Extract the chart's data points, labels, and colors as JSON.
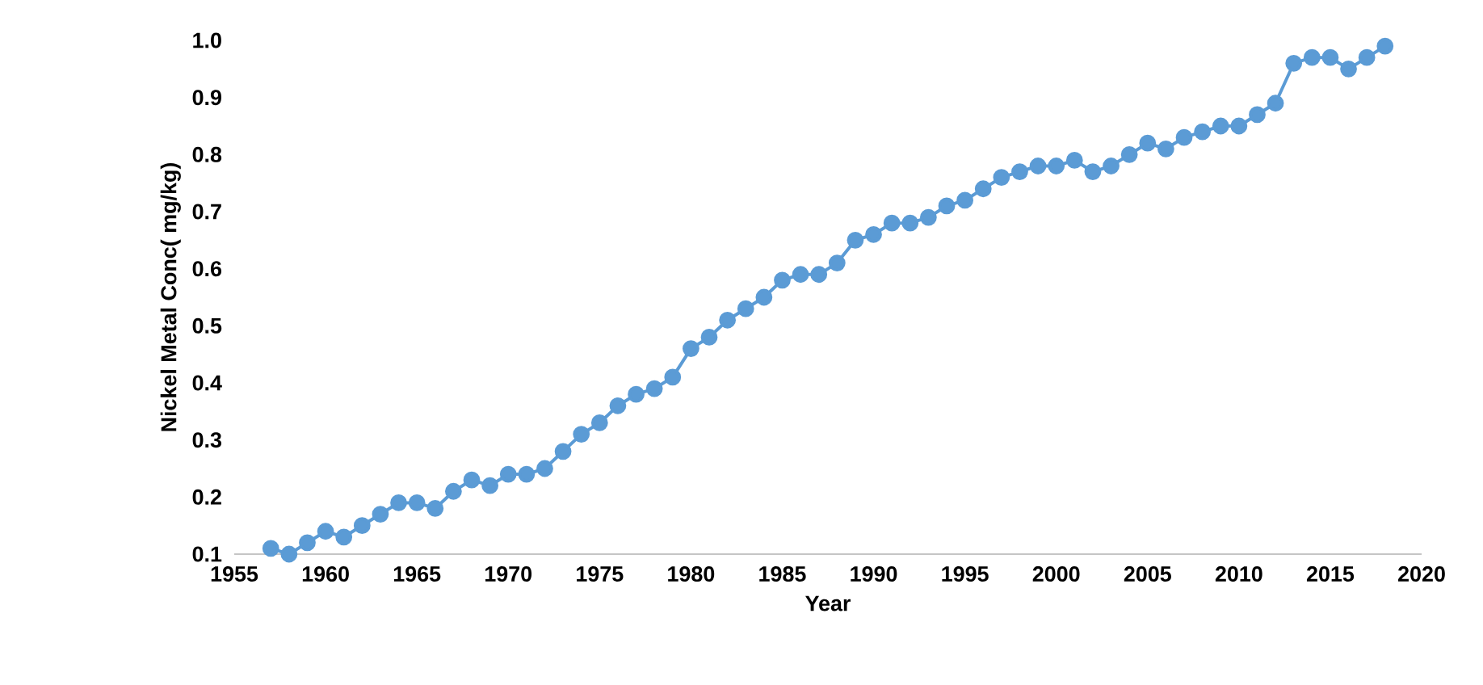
{
  "chart_data": {
    "type": "line",
    "xlabel": "Year",
    "ylabel": "Nickel Metal Conc( mg/kg)",
    "x": [
      1957,
      1958,
      1959,
      1960,
      1961,
      1962,
      1963,
      1964,
      1965,
      1966,
      1967,
      1968,
      1969,
      1970,
      1971,
      1972,
      1973,
      1974,
      1975,
      1976,
      1977,
      1978,
      1979,
      1980,
      1981,
      1982,
      1983,
      1984,
      1985,
      1986,
      1987,
      1988,
      1989,
      1990,
      1991,
      1992,
      1993,
      1994,
      1995,
      1996,
      1997,
      1998,
      1999,
      2000,
      2001,
      2002,
      2003,
      2004,
      2005,
      2006,
      2007,
      2008,
      2009,
      2010,
      2011,
      2012,
      2013,
      2014,
      2015,
      2016,
      2017,
      2018
    ],
    "series": [
      {
        "color": "#5b9bd5",
        "values": [
          0.11,
          0.1,
          0.12,
          0.14,
          0.13,
          0.15,
          0.17,
          0.19,
          0.19,
          0.18,
          0.21,
          0.23,
          0.22,
          0.24,
          0.24,
          0.25,
          0.28,
          0.31,
          0.33,
          0.36,
          0.38,
          0.39,
          0.41,
          0.46,
          0.48,
          0.51,
          0.53,
          0.55,
          0.58,
          0.59,
          0.59,
          0.61,
          0.65,
          0.66,
          0.68,
          0.68,
          0.69,
          0.71,
          0.72,
          0.74,
          0.76,
          0.77,
          0.78,
          0.78,
          0.79,
          0.77,
          0.78,
          0.8,
          0.82,
          0.81,
          0.83,
          0.84,
          0.85,
          0.85,
          0.87,
          0.89,
          0.96,
          0.97,
          0.97,
          0.95,
          0.97,
          0.99
        ]
      }
    ],
    "xlim": [
      1955,
      2020
    ],
    "xticks": [
      1955,
      1960,
      1965,
      1970,
      1975,
      1980,
      1985,
      1990,
      1995,
      2000,
      2005,
      2010,
      2015,
      2020
    ],
    "ylim": [
      0.1,
      1.0
    ],
    "yticks": [
      {
        "value": 0.1,
        "label": "0.1"
      },
      {
        "value": 0.2,
        "label": "0.2"
      },
      {
        "value": 0.3,
        "label": "0.3"
      },
      {
        "value": 0.4,
        "label": "0.4"
      },
      {
        "value": 0.5,
        "label": "0.5"
      },
      {
        "value": 0.6,
        "label": "0.6"
      },
      {
        "value": 0.7,
        "label": "0.7"
      },
      {
        "value": 0.8,
        "label": "0.8"
      },
      {
        "value": 0.9,
        "label": "0.9"
      },
      {
        "value": 1.0,
        "label": "1.0"
      }
    ],
    "marker": "circle",
    "line_style": "solid",
    "grid": false
  }
}
